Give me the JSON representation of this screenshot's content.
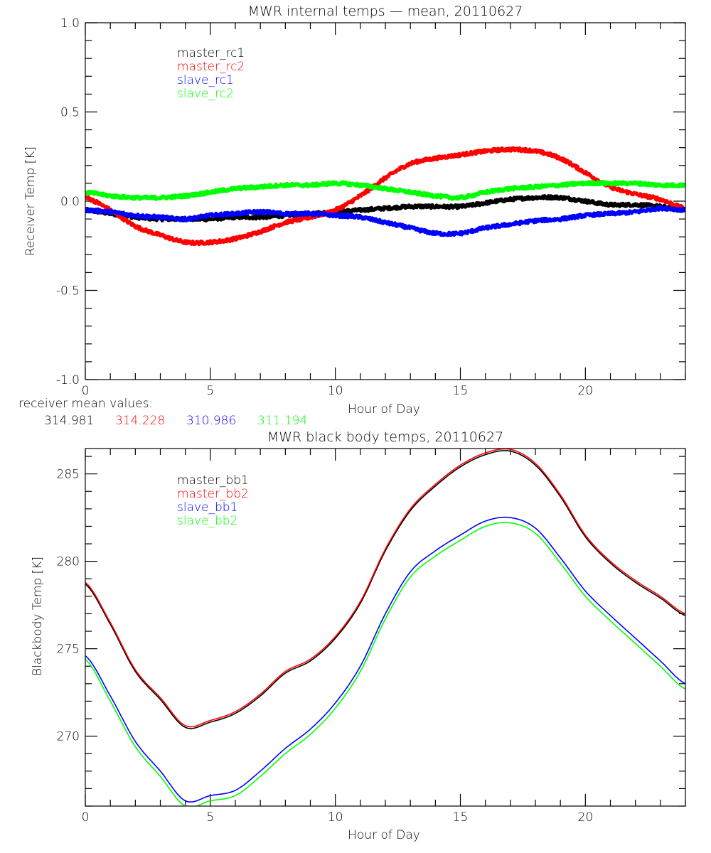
{
  "chart_data": [
    {
      "type": "line",
      "title": "MWR internal temps — mean, 20110627",
      "xlabel": "Hour of Day",
      "ylabel": "Receiver Temp [K]",
      "xlim": [
        0,
        24
      ],
      "ylim": [
        -1.0,
        1.0
      ],
      "xticks": [
        0,
        5,
        10,
        15,
        20
      ],
      "xtick_labels": [
        "0",
        "5",
        "10",
        "15",
        "20"
      ],
      "yticks": [
        -1.0,
        -0.5,
        0.0,
        0.5,
        1.0
      ],
      "ytick_labels": [
        "-1.0",
        "-0.5",
        "0.0",
        "0.5",
        "1.0"
      ],
      "x_minor_step": 1,
      "y_minor_step": 0.1,
      "grid": false,
      "legend_position": "top-left",
      "x": [
        0,
        1,
        2,
        3,
        4,
        5,
        6,
        7,
        8,
        9,
        10,
        11,
        12,
        13,
        14,
        15,
        16,
        17,
        18,
        19,
        20,
        21,
        22,
        23,
        24
      ],
      "series": [
        {
          "name": "master_rc1",
          "color": "#000000",
          "noisy": true,
          "values": [
            -0.05,
            -0.07,
            -0.09,
            -0.1,
            -0.1,
            -0.1,
            -0.09,
            -0.09,
            -0.08,
            -0.07,
            -0.06,
            -0.05,
            -0.04,
            -0.03,
            -0.03,
            -0.03,
            -0.01,
            0.01,
            0.02,
            0.02,
            0.0,
            -0.02,
            -0.02,
            -0.03,
            -0.05
          ]
        },
        {
          "name": "master_rc2",
          "color": "#ff0000",
          "noisy": true,
          "values": [
            0.02,
            -0.05,
            -0.14,
            -0.19,
            -0.23,
            -0.23,
            -0.21,
            -0.17,
            -0.12,
            -0.09,
            -0.05,
            0.03,
            0.13,
            0.21,
            0.24,
            0.26,
            0.28,
            0.29,
            0.28,
            0.24,
            0.16,
            0.08,
            0.04,
            0.01,
            -0.04
          ]
        },
        {
          "name": "slave_rc1",
          "color": "#0000ff",
          "noisy": true,
          "values": [
            -0.05,
            -0.06,
            -0.08,
            -0.09,
            -0.1,
            -0.08,
            -0.07,
            -0.06,
            -0.07,
            -0.07,
            -0.08,
            -0.09,
            -0.12,
            -0.15,
            -0.18,
            -0.18,
            -0.15,
            -0.13,
            -0.11,
            -0.1,
            -0.08,
            -0.07,
            -0.06,
            -0.04,
            -0.05
          ]
        },
        {
          "name": "slave_rc2",
          "color": "#00ff00",
          "noisy": true,
          "values": [
            0.05,
            0.03,
            0.02,
            0.02,
            0.03,
            0.05,
            0.07,
            0.08,
            0.09,
            0.09,
            0.1,
            0.09,
            0.07,
            0.05,
            0.03,
            0.02,
            0.05,
            0.07,
            0.08,
            0.09,
            0.1,
            0.1,
            0.1,
            0.09,
            0.09
          ]
        }
      ],
      "annotation": {
        "label": "receiver mean values:",
        "values": [
          {
            "text": "314.981",
            "color": "#000000"
          },
          {
            "text": "314.228",
            "color": "#ff0000"
          },
          {
            "text": "310.986",
            "color": "#0000ff"
          },
          {
            "text": "311.194",
            "color": "#00ff00"
          }
        ]
      }
    },
    {
      "type": "line",
      "title": "MWR black body temps, 20110627",
      "xlabel": "Hour of Day",
      "ylabel": "Blackbody Temp [K]",
      "xlim": [
        0,
        24
      ],
      "ylim": [
        266.0,
        286.45
      ],
      "xticks": [
        0,
        5,
        10,
        15,
        20
      ],
      "xtick_labels": [
        "0",
        "5",
        "10",
        "15",
        "20"
      ],
      "yticks": [
        270,
        275,
        280,
        285
      ],
      "ytick_labels": [
        "270",
        "275",
        "280",
        "285"
      ],
      "x_minor_step": 1,
      "y_minor_step": 1,
      "grid": false,
      "legend_position": "top-left",
      "x": [
        0,
        1,
        2,
        3,
        4,
        5,
        6,
        7,
        8,
        9,
        10,
        11,
        12,
        13,
        14,
        15,
        16,
        17,
        18,
        19,
        20,
        21,
        22,
        23,
        24
      ],
      "series": [
        {
          "name": "master_bb1",
          "color": "#000000",
          "noisy": false,
          "values": [
            278.7,
            276.4,
            273.7,
            272.1,
            270.5,
            270.8,
            271.3,
            272.3,
            273.6,
            274.3,
            275.6,
            277.6,
            280.6,
            282.9,
            284.3,
            285.4,
            286.1,
            286.3,
            285.5,
            283.7,
            281.4,
            279.9,
            278.8,
            277.9,
            276.9
          ]
        },
        {
          "name": "master_bb2",
          "color": "#ff0000",
          "noisy": false,
          "values": [
            278.8,
            276.5,
            273.8,
            272.2,
            270.6,
            270.9,
            271.4,
            272.4,
            273.7,
            274.4,
            275.7,
            277.7,
            280.7,
            283.0,
            284.4,
            285.5,
            286.2,
            286.4,
            285.6,
            283.8,
            281.5,
            280.0,
            278.9,
            278.0,
            277.0
          ]
        },
        {
          "name": "slave_bb1",
          "color": "#0000ff",
          "noisy": false,
          "values": [
            274.6,
            272.3,
            269.7,
            268.0,
            266.3,
            266.6,
            266.9,
            268.0,
            269.3,
            270.4,
            271.9,
            274.0,
            277.0,
            279.4,
            280.6,
            281.5,
            282.3,
            282.5,
            281.9,
            280.2,
            278.3,
            276.9,
            275.6,
            274.3,
            273.0
          ]
        },
        {
          "name": "slave_bb2",
          "color": "#00ff00",
          "noisy": false,
          "values": [
            274.4,
            272.0,
            269.4,
            267.7,
            266.0,
            266.3,
            266.6,
            267.7,
            269.0,
            270.1,
            271.6,
            273.7,
            276.7,
            279.1,
            280.3,
            281.2,
            282.0,
            282.2,
            281.6,
            279.9,
            278.0,
            276.6,
            275.3,
            274.0,
            272.7
          ]
        }
      ]
    }
  ]
}
